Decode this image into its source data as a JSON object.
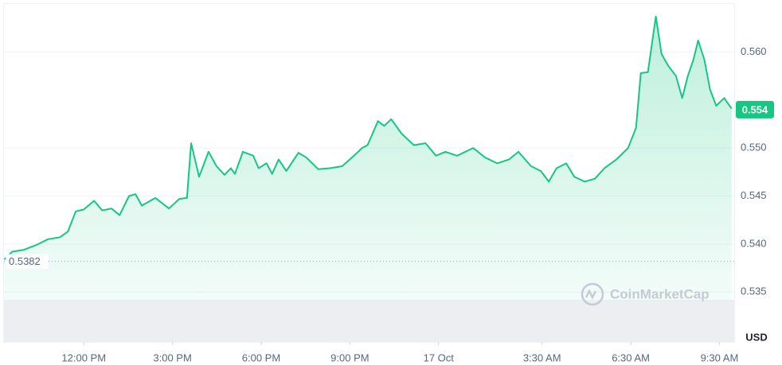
{
  "chart_data": {
    "type": "area",
    "color": "#16c784",
    "x": [
      9.31,
      9.58,
      9.98,
      10.39,
      10.79,
      11.19,
      11.46,
      11.73,
      12.0,
      12.35,
      12.62,
      12.94,
      13.21,
      13.53,
      13.75,
      13.96,
      14.42,
      14.88,
      15.23,
      15.49,
      15.63,
      15.9,
      16.22,
      16.49,
      16.76,
      16.97,
      17.11,
      17.38,
      17.73,
      17.91,
      18.18,
      18.37,
      18.59,
      18.85,
      19.26,
      19.53,
      19.93,
      20.33,
      20.74,
      21.14,
      21.41,
      21.6,
      21.95,
      22.16,
      22.4,
      22.75,
      23.16,
      23.56,
      23.91,
      24.23,
      24.63,
      25.17,
      25.58,
      25.98,
      26.38,
      26.7,
      27.13,
      27.46,
      27.73,
      27.99,
      28.32,
      28.59,
      28.94,
      29.29,
      29.61,
      30.01,
      30.41,
      30.68,
      30.84,
      31.08,
      31.35,
      31.54,
      31.76,
      32.03,
      32.24,
      32.43,
      32.62,
      32.78,
      32.99,
      33.18,
      33.39,
      33.66,
      33.91
    ],
    "values": [
      0.5384,
      0.5392,
      0.5394,
      0.5399,
      0.5405,
      0.5407,
      0.5413,
      0.5434,
      0.5436,
      0.5445,
      0.5435,
      0.5437,
      0.543,
      0.545,
      0.5452,
      0.544,
      0.5448,
      0.5437,
      0.5447,
      0.5448,
      0.5505,
      0.547,
      0.5496,
      0.5481,
      0.5472,
      0.5479,
      0.5473,
      0.5496,
      0.5492,
      0.5479,
      0.5484,
      0.5473,
      0.5488,
      0.5476,
      0.5495,
      0.549,
      0.5478,
      0.5479,
      0.5481,
      0.5492,
      0.55,
      0.5503,
      0.5528,
      0.5523,
      0.553,
      0.5515,
      0.5503,
      0.5505,
      0.5492,
      0.5496,
      0.5492,
      0.55,
      0.549,
      0.5484,
      0.5488,
      0.5496,
      0.5481,
      0.5476,
      0.5465,
      0.5479,
      0.5484,
      0.547,
      0.5465,
      0.5468,
      0.5479,
      0.5488,
      0.55,
      0.5521,
      0.5578,
      0.5579,
      0.5637,
      0.5598,
      0.5586,
      0.5575,
      0.5552,
      0.5575,
      0.5592,
      0.5612,
      0.5592,
      0.5561,
      0.5544,
      0.5552,
      0.5541
    ],
    "xlim": [
      9.3,
      34
    ],
    "xticks": [
      {
        "value": 12,
        "label": "12:00 PM"
      },
      {
        "value": 15,
        "label": "3:00 PM"
      },
      {
        "value": 18,
        "label": "6:00 PM"
      },
      {
        "value": 21,
        "label": "9:00 PM"
      },
      {
        "value": 24,
        "label": "17 Oct"
      },
      {
        "value": 27.5,
        "label": "3:30 AM"
      },
      {
        "value": 30.5,
        "label": "6:30 AM"
      },
      {
        "value": 33.5,
        "label": "9:30 AM"
      }
    ],
    "ylim": [
      0.5298,
      0.565
    ],
    "yticks": [
      0.535,
      {
        "value": 0.54,
        "label": "0.540"
      },
      0.545,
      {
        "value": 0.55,
        "label": "0.550"
      },
      {
        "value": 0.56,
        "label": "0.560"
      }
    ],
    "grid": true,
    "open_price": 0.5382,
    "current_price": 0.554,
    "currency": "USD",
    "watermark": "CoinMarketCap"
  }
}
